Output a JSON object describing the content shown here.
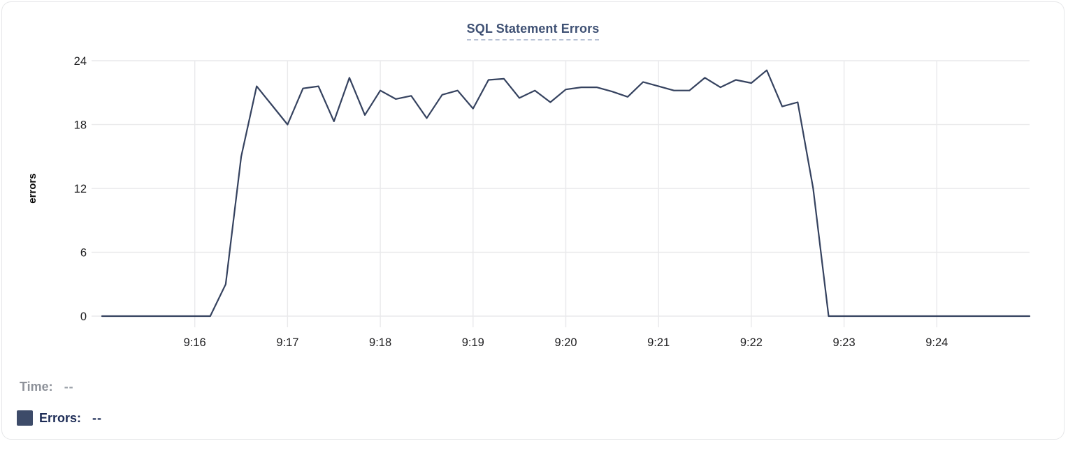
{
  "panel": {
    "title": "SQL Statement Errors"
  },
  "chart_data": {
    "type": "line",
    "title": "SQL Statement Errors",
    "xlabel": "",
    "ylabel": "errors",
    "ylim": [
      0,
      24
    ],
    "y_ticks": [
      0,
      6,
      12,
      18,
      24
    ],
    "x_tick_labels": [
      "9:16",
      "9:17",
      "9:18",
      "9:19",
      "9:20",
      "9:21",
      "9:22",
      "9:23",
      "9:24"
    ],
    "x_start": "9:15:00",
    "x_end": "9:25:00",
    "x_interval_seconds": 10,
    "grid": true,
    "legend_position": "bottom-left",
    "series": [
      {
        "name": "Errors",
        "color": "#35425f",
        "values": [
          0,
          0,
          0,
          0,
          0,
          0,
          0,
          0,
          3,
          15,
          21.6,
          19.8,
          18,
          21.4,
          21.6,
          18.3,
          22.4,
          18.9,
          21.2,
          20.4,
          20.7,
          18.6,
          20.8,
          21.2,
          19.5,
          22.2,
          22.3,
          20.5,
          21.2,
          20.1,
          21.3,
          21.5,
          21.5,
          21.1,
          20.6,
          22,
          21.6,
          21.2,
          21.2,
          22.4,
          21.5,
          22.2,
          21.9,
          23.1,
          19.7,
          20.1,
          12,
          0,
          0,
          0,
          0,
          0,
          0,
          0,
          0,
          0,
          0,
          0,
          0,
          0,
          0
        ]
      }
    ]
  },
  "legend": {
    "time_label": "Time:",
    "time_value": "--",
    "errors_label": "Errors:",
    "errors_value": "--"
  },
  "colors": {
    "line": "#35425f",
    "grid": "#e9e9eb",
    "axis_text": "#1d1d1f",
    "ylabel_text": "#0a0a0a",
    "title": "#3f5174",
    "title_underline": "#b6c0d4",
    "time_label": "#8e929a",
    "time_value": "#9aa0a8",
    "errors_label": "#1c2b55",
    "swatch": "#3d4b69",
    "card_border": "#e6e7e9"
  }
}
